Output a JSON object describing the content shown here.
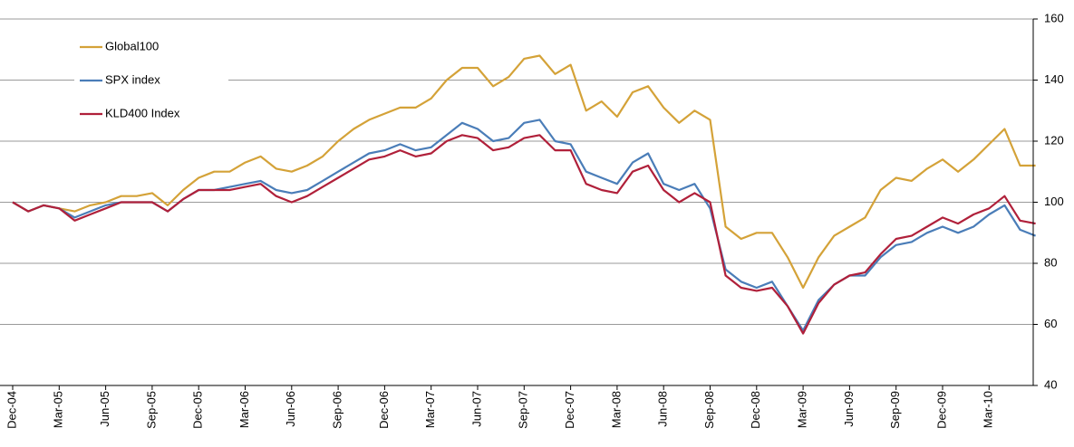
{
  "chart_data": {
    "type": "line",
    "categories": [
      "Dec-04",
      null,
      null,
      "Mar-05",
      null,
      null,
      "Jun-05",
      null,
      null,
      "Sep-05",
      null,
      null,
      "Dec-05",
      null,
      null,
      "Mar-06",
      null,
      null,
      "Jun-06",
      null,
      null,
      "Sep-06",
      null,
      null,
      "Dec-06",
      null,
      null,
      "Mar-07",
      null,
      null,
      "Jun-07",
      null,
      null,
      "Sep-07",
      null,
      null,
      "Dec-07",
      null,
      null,
      "Mar-08",
      null,
      null,
      "Jun-08",
      null,
      null,
      "Sep-08",
      null,
      null,
      "Dec-08",
      null,
      null,
      "Mar-09",
      null,
      null,
      "Jun-09",
      null,
      null,
      "Sep-09",
      null,
      null,
      "Dec-09",
      null,
      null,
      "Mar-10",
      null,
      null,
      null
    ],
    "series": [
      {
        "name": "Global100",
        "color": "#d4a238",
        "values": [
          100,
          97,
          99,
          98,
          97,
          99,
          100,
          102,
          102,
          103,
          99,
          104,
          108,
          110,
          110,
          113,
          115,
          111,
          110,
          112,
          115,
          120,
          124,
          127,
          129,
          131,
          131,
          134,
          140,
          144,
          144,
          138,
          141,
          147,
          148,
          142,
          145,
          130,
          133,
          128,
          136,
          138,
          131,
          126,
          130,
          127,
          92,
          88,
          90,
          90,
          82,
          72,
          82,
          89,
          92,
          95,
          104,
          108,
          107,
          111,
          114,
          110,
          114,
          119,
          124,
          112,
          112
        ]
      },
      {
        "name": "SPX index",
        "color": "#4a7db8",
        "values": [
          100,
          97,
          99,
          98,
          95,
          97,
          99,
          100,
          100,
          100,
          97,
          101,
          104,
          104,
          105,
          106,
          107,
          104,
          103,
          104,
          107,
          110,
          113,
          116,
          117,
          119,
          117,
          118,
          122,
          126,
          124,
          120,
          121,
          126,
          127,
          120,
          119,
          110,
          108,
          106,
          113,
          116,
          106,
          104,
          106,
          98,
          78,
          74,
          72,
          74,
          66,
          58,
          68,
          73,
          76,
          76,
          82,
          86,
          87,
          90,
          92,
          90,
          92,
          96,
          99,
          91,
          89
        ]
      },
      {
        "name": "KLD400 Index",
        "color": "#b0203a",
        "values": [
          100,
          97,
          99,
          98,
          94,
          96,
          98,
          100,
          100,
          100,
          97,
          101,
          104,
          104,
          104,
          105,
          106,
          102,
          100,
          102,
          105,
          108,
          111,
          114,
          115,
          117,
          115,
          116,
          120,
          122,
          121,
          117,
          118,
          121,
          122,
          117,
          117,
          106,
          104,
          103,
          110,
          112,
          104,
          100,
          103,
          100,
          76,
          72,
          71,
          72,
          66,
          57,
          67,
          73,
          76,
          77,
          83,
          88,
          89,
          92,
          95,
          93,
          96,
          98,
          102,
          94,
          93
        ]
      }
    ],
    "ylim": [
      40,
      160
    ],
    "yticks": [
      40,
      60,
      80,
      100,
      120,
      140,
      160
    ],
    "grid": true,
    "legend": "top-left"
  }
}
